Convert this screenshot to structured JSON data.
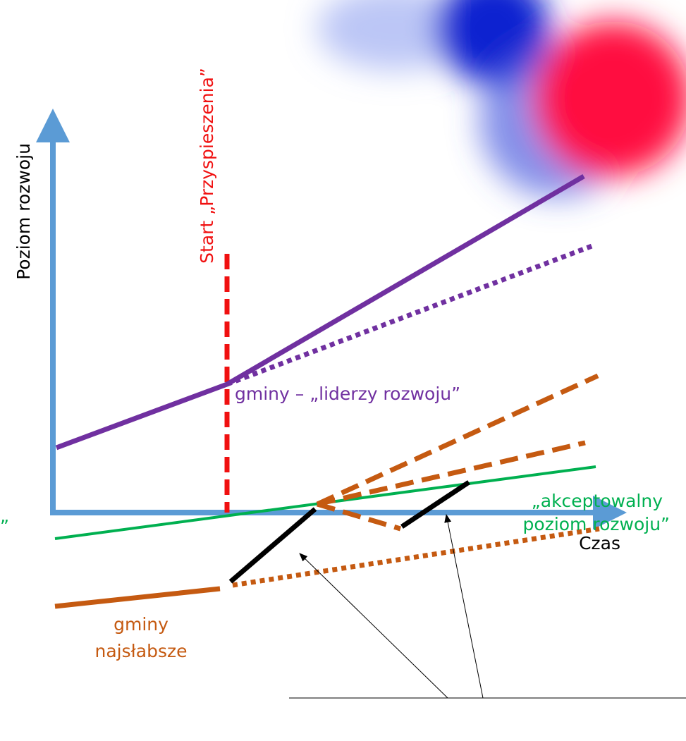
{
  "axes": {
    "y_label": "Poziom rozwoju",
    "x_label": "Czas"
  },
  "marker_label": "Start „Przyspieszenia”",
  "leaders_label": "gminy – „liderzy rozwoju”",
  "acceptable_label": [
    "„akceptowalny",
    "poziom rozwoju”"
  ],
  "weakest_label": [
    "gminy",
    "najsłabsze"
  ],
  "edge_fragment": "”"
}
